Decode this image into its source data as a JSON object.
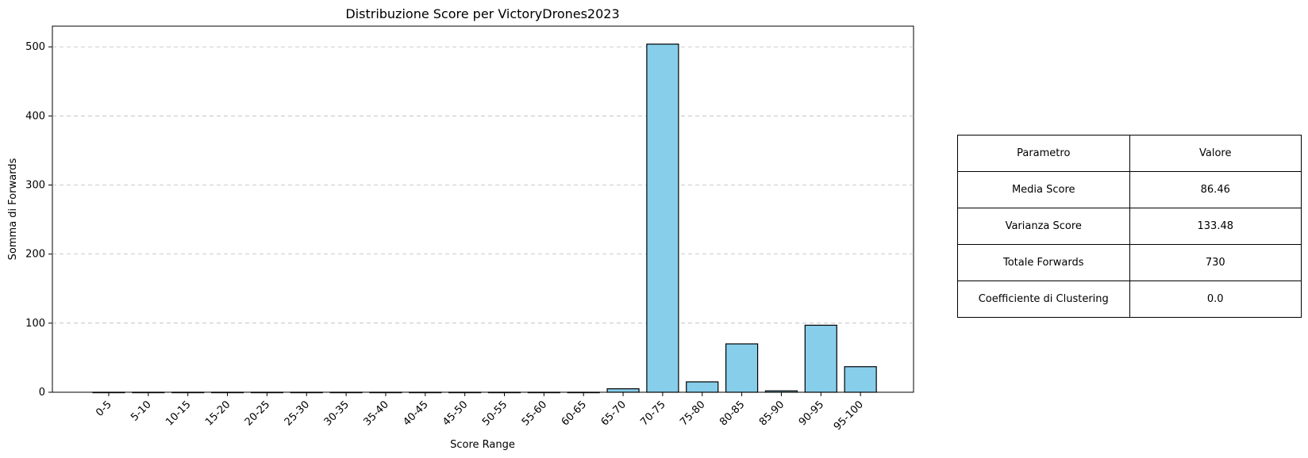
{
  "chart_data": {
    "type": "bar",
    "title": "Distribuzione Score per VictoryDrones2023",
    "xlabel": "Score Range",
    "ylabel": "Somma di Forwards",
    "categories": [
      "0-5",
      "5-10",
      "10-15",
      "15-20",
      "20-25",
      "25-30",
      "30-35",
      "35-40",
      "40-45",
      "45-50",
      "50-55",
      "55-60",
      "60-65",
      "65-70",
      "70-75",
      "75-80",
      "80-85",
      "85-90",
      "90-95",
      "95-100"
    ],
    "values": [
      0,
      0,
      0,
      0,
      0,
      0,
      0,
      0,
      0,
      0,
      0,
      0,
      0,
      5,
      504,
      15,
      70,
      2,
      97,
      37
    ],
    "ylim": [
      0,
      530
    ],
    "yticks": [
      0,
      100,
      200,
      300,
      400,
      500
    ],
    "grid": "y-dashed",
    "bar_color": "#87CEEB",
    "bar_edge_color": "#000000"
  },
  "table": {
    "header": [
      "Parametro",
      "Valore"
    ],
    "rows": [
      [
        "Media Score",
        "86.46"
      ],
      [
        "Varianza Score",
        "133.48"
      ],
      [
        "Totale Forwards",
        "730"
      ],
      [
        "Coefficiente di Clustering",
        "0.0"
      ]
    ]
  }
}
